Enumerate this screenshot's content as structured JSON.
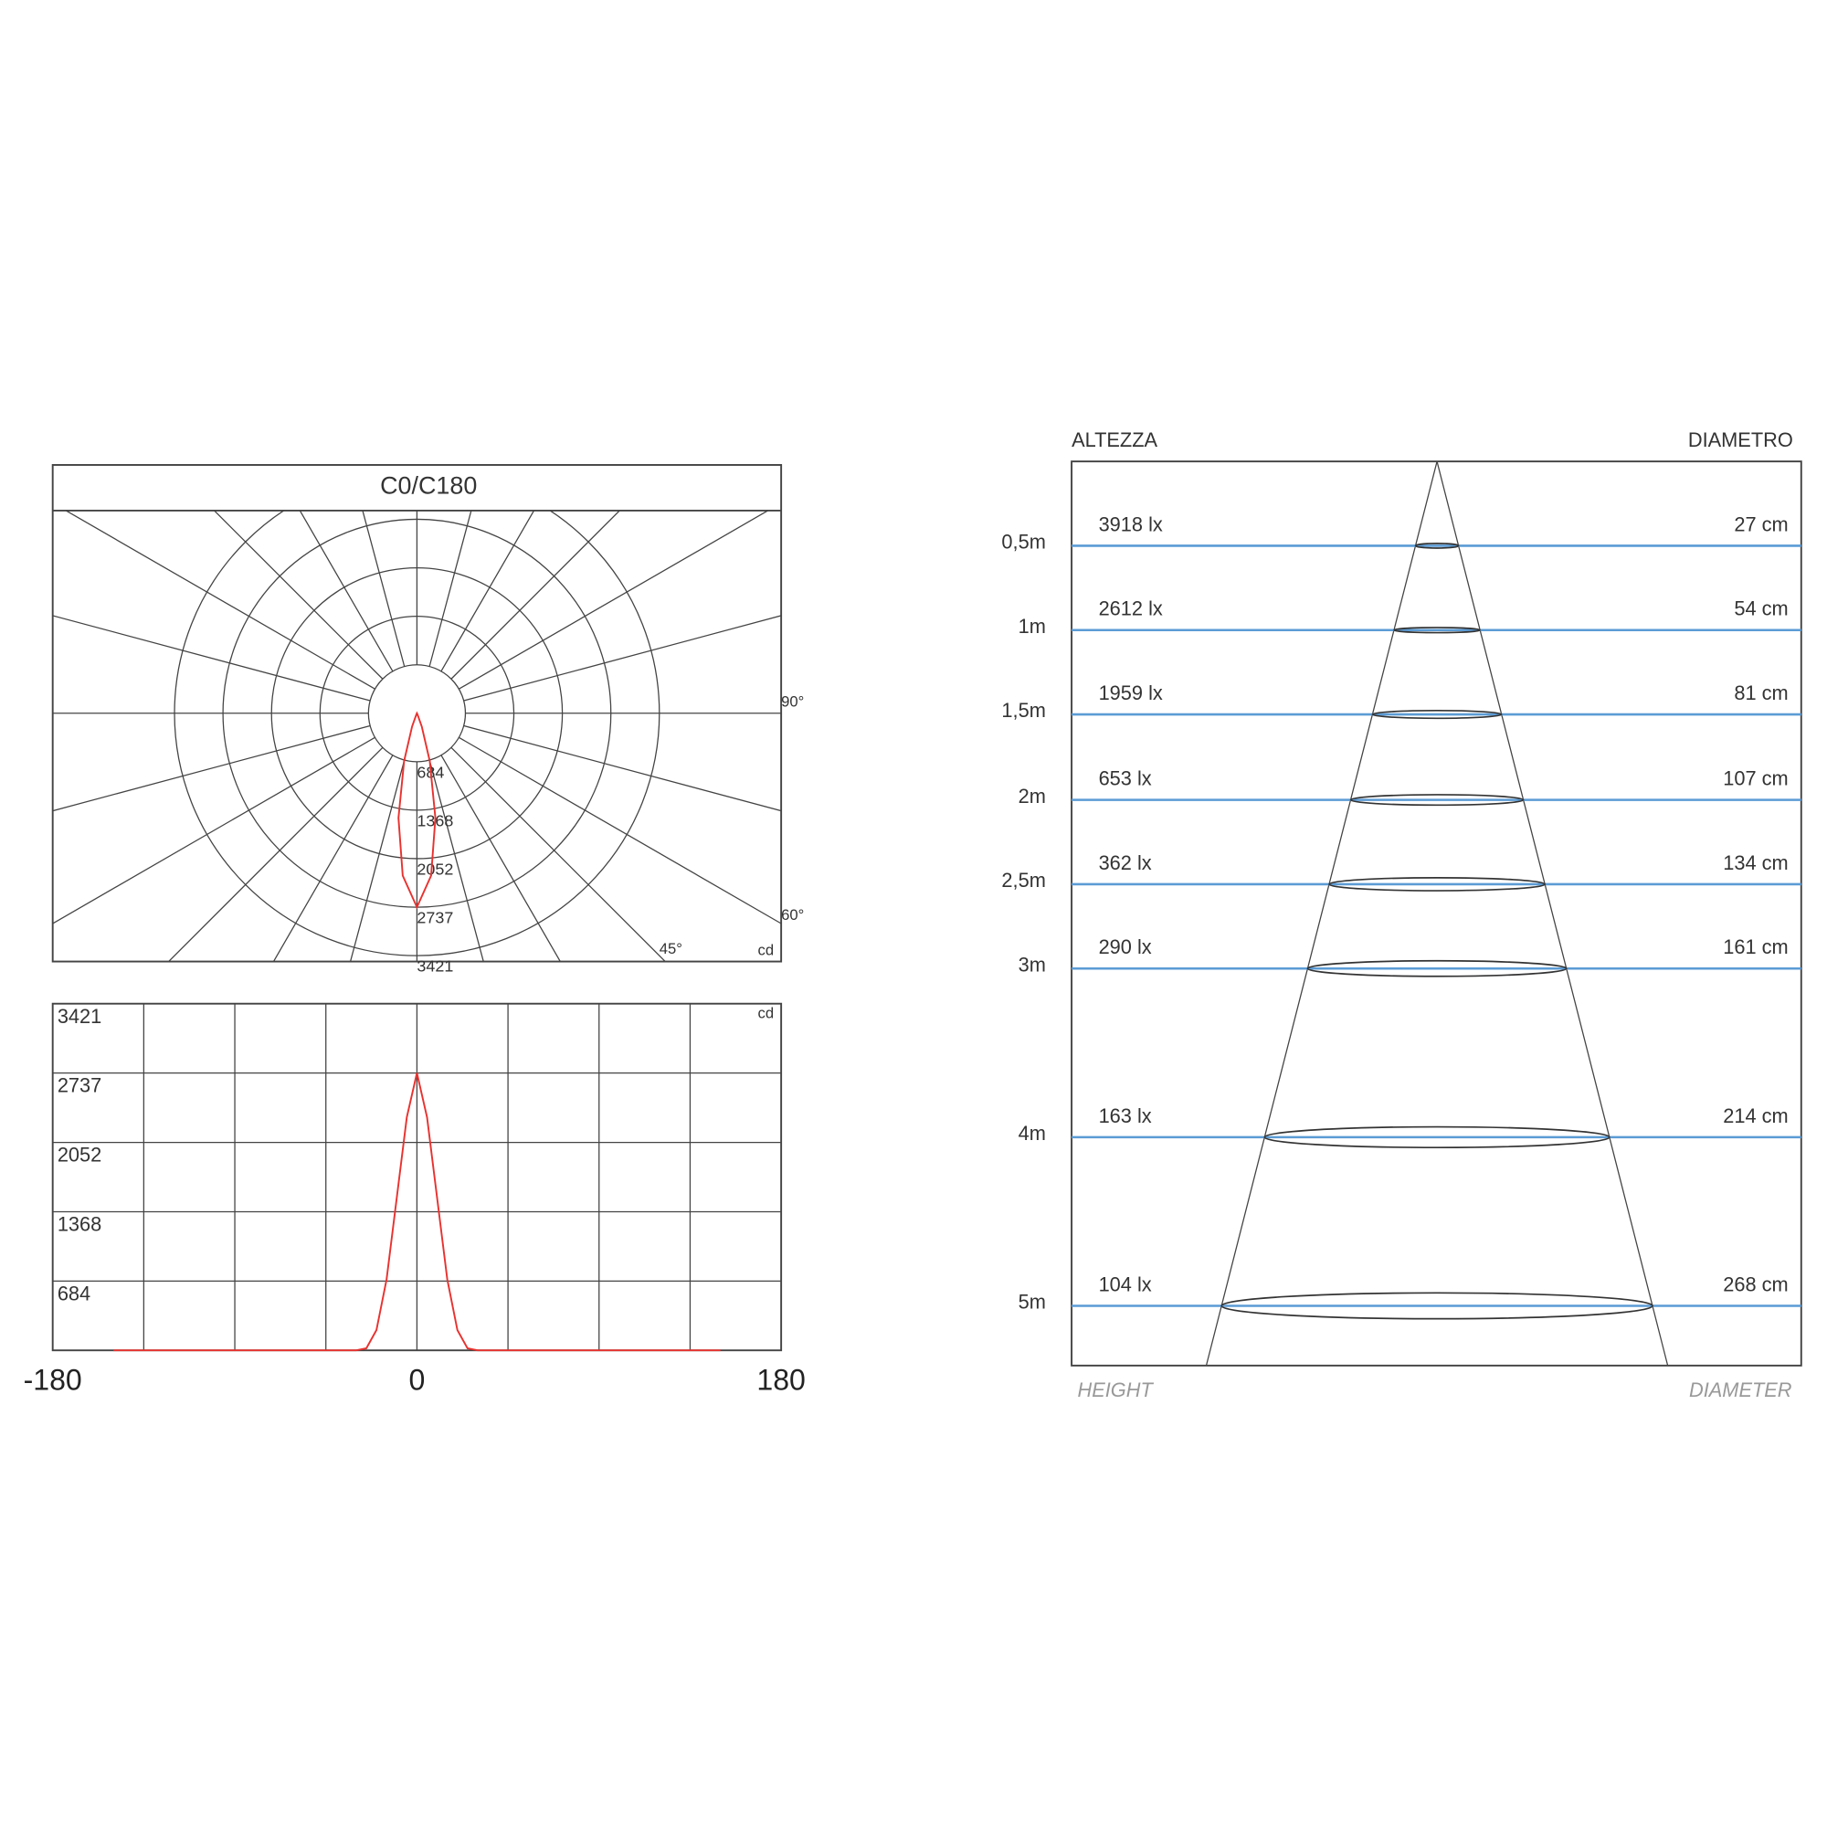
{
  "chart_data": [
    {
      "type": "polar",
      "title": "C0/C180",
      "unit": "cd",
      "x": [
        -30,
        -25,
        -20,
        -15,
        -10,
        -5,
        0,
        5,
        10,
        15,
        20,
        25,
        30
      ],
      "values": [
        0,
        20,
        200,
        700,
        1500,
        2300,
        2737,
        2300,
        1500,
        700,
        200,
        20,
        0
      ],
      "color": "#e8322f",
      "rlim": [
        0,
        3421
      ],
      "rticks": [
        684,
        1368,
        2052,
        2737,
        3421
      ],
      "angle_labels": [
        "90°",
        "60°",
        "45°"
      ]
    },
    {
      "type": "line",
      "unit": "cd",
      "x": [
        -150,
        -30,
        -25,
        -20,
        -15,
        -10,
        -5,
        0,
        5,
        10,
        15,
        20,
        25,
        30,
        150
      ],
      "values": [
        0,
        0,
        20,
        200,
        700,
        1500,
        2300,
        2737,
        2300,
        1500,
        700,
        200,
        20,
        0,
        0
      ],
      "color": "#e8322f",
      "xlim": [
        -180,
        180
      ],
      "xticks": [
        -180,
        0,
        180
      ],
      "ylim": [
        0,
        3421
      ],
      "yticks": [
        684,
        1368,
        2052,
        2737,
        3421
      ],
      "grid": true
    }
  ],
  "cone": {
    "height_title": "ALTEZZA",
    "diameter_title": "DIAMETRO",
    "height_footer": "HEIGHT",
    "diameter_footer": "DIAMETER",
    "rows": [
      {
        "height": "0,5m",
        "illuminance": "3918 lx",
        "diameter": "27 cm"
      },
      {
        "height": "1m",
        "illuminance": "2612 lx",
        "diameter": "54 cm"
      },
      {
        "height": "1,5m",
        "illuminance": "1959 lx",
        "diameter": "81 cm"
      },
      {
        "height": "2m",
        "illuminance": "653 lx",
        "diameter": "107 cm"
      },
      {
        "height": "2,5m",
        "illuminance": "362 lx",
        "diameter": "134 cm"
      },
      {
        "height": "3m",
        "illuminance": "290 lx",
        "diameter": "161 cm"
      },
      {
        "height": "4m",
        "illuminance": "163 lx",
        "diameter": "214 cm"
      },
      {
        "height": "5m",
        "illuminance": "104 lx",
        "diameter": "268 cm"
      }
    ]
  }
}
